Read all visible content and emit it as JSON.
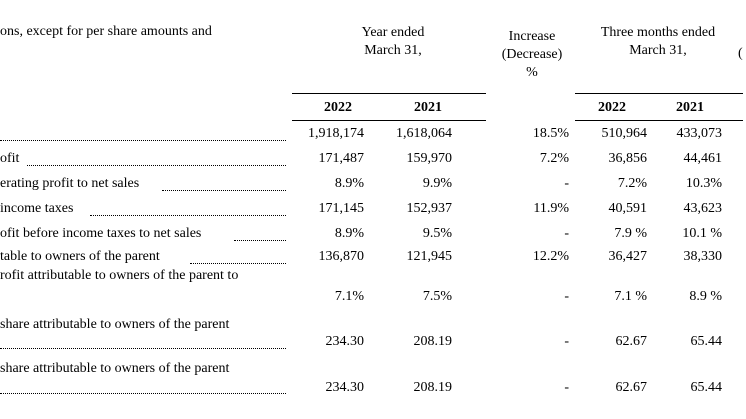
{
  "header": {
    "caption": "ons, except for per share amounts and",
    "year_ended_line1": "Year ended",
    "year_ended_line2": "March 31,",
    "increase_line1": "Increase",
    "increase_line2": "(Decrease)",
    "increase_line3": "%",
    "three_months_line1": "Three months ended",
    "three_months_line2": "March 31,",
    "right_edge": "("
  },
  "columns": [
    "2022",
    "2021",
    "2022",
    "2021"
  ],
  "rows": [
    {
      "label": "",
      "v": [
        "1,918,174",
        "1,618,064",
        "18.5%",
        "510,964",
        "433,073"
      ]
    },
    {
      "label": "ofit",
      "v": [
        "171,487",
        "159,970",
        "7.2%",
        "36,856",
        "44,461"
      ]
    },
    {
      "label": "erating profit to net sales",
      "v": [
        "8.9%",
        "9.9%",
        "-",
        "7.2%",
        "10.3%"
      ]
    },
    {
      "label": "income taxes",
      "v": [
        "171,145",
        "152,937",
        "11.9%",
        "40,591",
        "43,623"
      ]
    },
    {
      "label": "ofit before income taxes to net sales",
      "v": [
        "8.9%",
        "9.5%",
        "-",
        "7.9 %",
        "10.1 %"
      ]
    },
    {
      "label": "table to owners of the parent",
      "v": [
        "136,870",
        "121,945",
        "12.2%",
        "36,427",
        "38,330"
      ]
    },
    {
      "label": "rofit attributable to owners of the parent to",
      "v": [
        "7.1%",
        "7.5%",
        "-",
        "7.1 %",
        "8.9 %"
      ]
    },
    {
      "label": "share attributable to owners of the parent",
      "v": [
        "234.30",
        "208.19",
        "-",
        "62.67",
        "65.44"
      ]
    },
    {
      "label": "share attributable to owners of the parent",
      "v": [
        "234.30",
        "208.19",
        "-",
        "62.67",
        "65.44"
      ]
    }
  ]
}
